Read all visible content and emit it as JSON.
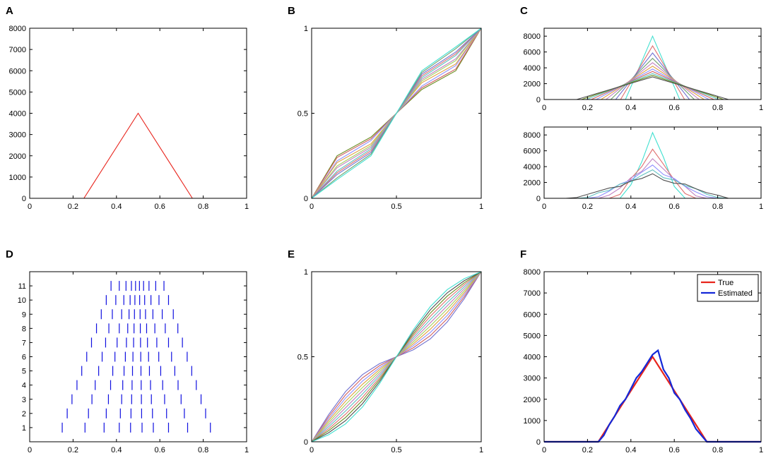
{
  "chart_data": [
    {
      "type": "line",
      "label": "A",
      "xlim": [
        0,
        1
      ],
      "xticks": [
        0,
        0.2,
        0.4,
        0.6,
        0.8,
        1
      ],
      "ylim": [
        0,
        8000
      ],
      "yticks": [
        0,
        1000,
        2000,
        3000,
        4000,
        5000,
        6000,
        7000,
        8000
      ],
      "series": [
        {
          "color": "#e8241c",
          "x": [
            0,
            0.25,
            0.5,
            0.75,
            1
          ],
          "values": [
            0,
            0,
            4000,
            0,
            0
          ]
        }
      ]
    },
    {
      "type": "line",
      "label": "B",
      "xlim": [
        0,
        1
      ],
      "xticks": [
        0,
        0.5,
        1
      ],
      "ylim": [
        0,
        1
      ],
      "yticks": [
        0,
        0.5,
        1
      ],
      "x": [
        0,
        0.15,
        0.35,
        0.5,
        0.65,
        0.85,
        1
      ],
      "series": [
        {
          "color": "#6b8e23",
          "values": [
            0,
            0.25,
            0.36,
            0.5,
            0.64,
            0.75,
            1
          ]
        },
        {
          "color": "#d06060",
          "values": [
            0,
            0.24,
            0.35,
            0.5,
            0.65,
            0.76,
            1
          ]
        },
        {
          "color": "#9090ff",
          "values": [
            0,
            0.22,
            0.34,
            0.5,
            0.66,
            0.78,
            1
          ]
        },
        {
          "color": "#e0a040",
          "values": [
            0,
            0.21,
            0.32,
            0.5,
            0.68,
            0.79,
            1
          ]
        },
        {
          "color": "#a0d060",
          "values": [
            0,
            0.19,
            0.31,
            0.5,
            0.69,
            0.81,
            1
          ]
        },
        {
          "color": "#c080c0",
          "values": [
            0,
            0.18,
            0.3,
            0.5,
            0.7,
            0.82,
            1
          ]
        },
        {
          "color": "#60c0c0",
          "values": [
            0,
            0.16,
            0.29,
            0.5,
            0.71,
            0.84,
            1
          ]
        },
        {
          "color": "#e07070",
          "values": [
            0,
            0.15,
            0.28,
            0.5,
            0.72,
            0.85,
            1
          ]
        },
        {
          "color": "#7070d0",
          "values": [
            0,
            0.14,
            0.27,
            0.5,
            0.73,
            0.86,
            1
          ]
        },
        {
          "color": "#70a070",
          "values": [
            0,
            0.12,
            0.26,
            0.5,
            0.74,
            0.88,
            1
          ]
        },
        {
          "color": "#40e0d0",
          "values": [
            0,
            0.11,
            0.25,
            0.5,
            0.75,
            0.89,
            1
          ]
        }
      ]
    },
    {
      "type": "line",
      "label": "C",
      "xlim": [
        0,
        1
      ],
      "xticks": [
        0,
        0.2,
        0.4,
        0.6,
        0.8,
        1
      ],
      "ylim": [
        0,
        9000
      ],
      "yticks": [
        0,
        2000,
        4000,
        6000,
        8000
      ],
      "series": [
        {
          "color": "#40e0d0",
          "x": [
            0,
            0.375,
            0.5,
            0.625,
            1
          ],
          "values": [
            0,
            0,
            8000,
            0,
            0
          ]
        },
        {
          "color": "#e07070",
          "x": [
            0,
            0.3525,
            0.5,
            0.6475,
            1
          ],
          "values": [
            0,
            0,
            6780,
            0,
            0
          ]
        },
        {
          "color": "#7070d0",
          "x": [
            0,
            0.33,
            0.5,
            0.67,
            1
          ],
          "values": [
            0,
            0,
            5882,
            0,
            0
          ]
        },
        {
          "color": "#70a070",
          "x": [
            0,
            0.3075,
            0.5,
            0.6925,
            1
          ],
          "values": [
            0,
            0,
            5195,
            0,
            0
          ]
        },
        {
          "color": "#c080c0",
          "x": [
            0,
            0.285,
            0.5,
            0.715,
            1
          ],
          "values": [
            0,
            0,
            4651,
            0,
            0
          ]
        },
        {
          "color": "#e0a040",
          "x": [
            0,
            0.2625,
            0.5,
            0.7375,
            1
          ],
          "values": [
            0,
            0,
            4211,
            0,
            0
          ]
        },
        {
          "color": "#9090ff",
          "x": [
            0,
            0.24,
            0.5,
            0.76,
            1
          ],
          "values": [
            0,
            0,
            3846,
            0,
            0
          ]
        },
        {
          "color": "#d06060",
          "x": [
            0,
            0.2175,
            0.5,
            0.7825,
            1
          ],
          "values": [
            0,
            0,
            3540,
            0,
            0
          ]
        },
        {
          "color": "#60c0c0",
          "x": [
            0,
            0.195,
            0.5,
            0.805,
            1
          ],
          "values": [
            0,
            0,
            3279,
            0,
            0
          ]
        },
        {
          "color": "#6b8e23",
          "x": [
            0,
            0.1725,
            0.5,
            0.8275,
            1
          ],
          "values": [
            0,
            0,
            3053,
            0,
            0
          ]
        },
        {
          "color": "#505050",
          "x": [
            0,
            0.15,
            0.5,
            0.85,
            1
          ],
          "values": [
            0,
            0,
            2857,
            0,
            0
          ]
        }
      ]
    },
    {
      "type": "line",
      "xlim": [
        0,
        1
      ],
      "xticks": [
        0,
        0.2,
        0.4,
        0.6,
        0.8,
        1
      ],
      "ylim": [
        0,
        9000
      ],
      "yticks": [
        0,
        2000,
        4000,
        6000,
        8000
      ],
      "x": [
        0.1,
        0.15,
        0.2,
        0.25,
        0.3,
        0.35,
        0.4,
        0.45,
        0.5,
        0.55,
        0.6,
        0.65,
        0.7,
        0.75,
        0.8,
        0.85,
        0.9
      ],
      "series": [
        {
          "color": "#40e0d0",
          "values": [
            0,
            0,
            0,
            0,
            0,
            0,
            1700,
            4600,
            8300,
            5200,
            1500,
            0,
            0,
            0,
            0,
            0,
            0
          ]
        },
        {
          "color": "#e07070",
          "values": [
            0,
            0,
            0,
            0,
            0,
            500,
            2500,
            4000,
            6200,
            4300,
            2300,
            600,
            0,
            0,
            0,
            0,
            0
          ]
        },
        {
          "color": "#c080c0",
          "values": [
            0,
            0,
            0,
            0,
            400,
            1300,
            2600,
            3400,
            5000,
            3700,
            2400,
            1500,
            300,
            0,
            0,
            0,
            0
          ]
        },
        {
          "color": "#9090ff",
          "values": [
            0,
            0,
            0,
            200,
            900,
            1800,
            2300,
            3300,
            4200,
            3000,
            2500,
            1500,
            800,
            200,
            0,
            0,
            0
          ]
        },
        {
          "color": "#60c0c0",
          "values": [
            0,
            0,
            100,
            700,
            1000,
            1800,
            2100,
            2900,
            3600,
            2600,
            2300,
            1600,
            1200,
            500,
            100,
            0,
            0
          ]
        },
        {
          "color": "#505050",
          "values": [
            0,
            100,
            500,
            900,
            1300,
            1500,
            2200,
            2500,
            3100,
            2300,
            1900,
            1800,
            1200,
            700,
            400,
            0,
            0
          ]
        }
      ]
    },
    {
      "type": "raster",
      "label": "D",
      "color": "#1010e0",
      "xlim": [
        0,
        1
      ],
      "xticks": [
        0,
        0.2,
        0.4,
        0.6,
        0.8,
        1
      ],
      "ylim": [
        0,
        12
      ],
      "yticks": [
        1,
        2,
        3,
        4,
        5,
        6,
        7,
        8,
        9,
        10,
        11
      ],
      "rows": [
        [
          0.15,
          0.255,
          0.343,
          0.413,
          0.465,
          0.518,
          0.57,
          0.64,
          0.728,
          0.833
        ],
        [
          0.173,
          0.271,
          0.353,
          0.418,
          0.467,
          0.516,
          0.566,
          0.631,
          0.713,
          0.811
        ],
        [
          0.195,
          0.287,
          0.363,
          0.424,
          0.47,
          0.515,
          0.561,
          0.622,
          0.698,
          0.79
        ],
        [
          0.218,
          0.302,
          0.373,
          0.429,
          0.472,
          0.514,
          0.557,
          0.613,
          0.684,
          0.768
        ],
        [
          0.24,
          0.318,
          0.383,
          0.435,
          0.474,
          0.513,
          0.552,
          0.604,
          0.669,
          0.747
        ],
        [
          0.263,
          0.334,
          0.393,
          0.441,
          0.476,
          0.512,
          0.548,
          0.595,
          0.654,
          0.726
        ],
        [
          0.285,
          0.35,
          0.403,
          0.446,
          0.479,
          0.511,
          0.543,
          0.586,
          0.64,
          0.704
        ],
        [
          0.308,
          0.365,
          0.413,
          0.452,
          0.481,
          0.51,
          0.539,
          0.577,
          0.625,
          0.683
        ],
        [
          0.33,
          0.381,
          0.424,
          0.458,
          0.483,
          0.509,
          0.534,
          0.568,
          0.611,
          0.662
        ],
        [
          0.353,
          0.397,
          0.434,
          0.463,
          0.485,
          0.507,
          0.53,
          0.559,
          0.596,
          0.64
        ],
        [
          0.375,
          0.413,
          0.444,
          0.469,
          0.488,
          0.506,
          0.525,
          0.55,
          0.581,
          0.619
        ]
      ]
    },
    {
      "type": "line",
      "label": "E",
      "xlim": [
        0,
        1
      ],
      "xticks": [
        0,
        0.5,
        1
      ],
      "ylim": [
        0,
        1
      ],
      "yticks": [
        0,
        0.5,
        1
      ],
      "x": [
        0,
        0.1,
        0.2,
        0.3,
        0.4,
        0.5,
        0.6,
        0.7,
        0.8,
        0.9,
        1
      ],
      "series": [
        {
          "color": "#7070d0",
          "values": [
            0,
            0.159,
            0.295,
            0.395,
            0.459,
            0.5,
            0.541,
            0.605,
            0.705,
            0.841,
            1
          ]
        },
        {
          "color": "#d06060",
          "values": [
            0,
            0.147,
            0.276,
            0.376,
            0.447,
            0.5,
            0.553,
            0.624,
            0.724,
            0.853,
            1
          ]
        },
        {
          "color": "#9090ff",
          "values": [
            0,
            0.135,
            0.257,
            0.357,
            0.435,
            0.5,
            0.565,
            0.643,
            0.743,
            0.865,
            1
          ]
        },
        {
          "color": "#e0a040",
          "values": [
            0,
            0.124,
            0.238,
            0.338,
            0.424,
            0.5,
            0.576,
            0.662,
            0.762,
            0.876,
            1
          ]
        },
        {
          "color": "#a0d060",
          "values": [
            0,
            0.112,
            0.219,
            0.319,
            0.412,
            0.5,
            0.588,
            0.681,
            0.781,
            0.888,
            1
          ]
        },
        {
          "color": "#c080c0",
          "values": [
            0,
            0.1,
            0.2,
            0.3,
            0.4,
            0.5,
            0.6,
            0.7,
            0.8,
            0.9,
            1
          ]
        },
        {
          "color": "#60c0c0",
          "values": [
            0,
            0.088,
            0.181,
            0.281,
            0.388,
            0.5,
            0.612,
            0.719,
            0.819,
            0.912,
            1
          ]
        },
        {
          "color": "#e07070",
          "values": [
            0,
            0.076,
            0.162,
            0.262,
            0.376,
            0.5,
            0.624,
            0.738,
            0.838,
            0.924,
            1
          ]
        },
        {
          "color": "#6b8e23",
          "values": [
            0,
            0.065,
            0.143,
            0.243,
            0.365,
            0.5,
            0.635,
            0.757,
            0.857,
            0.935,
            1
          ]
        },
        {
          "color": "#505050",
          "values": [
            0,
            0.053,
            0.124,
            0.224,
            0.353,
            0.5,
            0.647,
            0.776,
            0.876,
            0.947,
            1
          ]
        },
        {
          "color": "#40e0d0",
          "values": [
            0,
            0.041,
            0.105,
            0.205,
            0.341,
            0.5,
            0.659,
            0.795,
            0.895,
            0.959,
            1
          ]
        }
      ]
    },
    {
      "type": "line",
      "label": "F",
      "xlim": [
        0,
        1
      ],
      "xticks": [
        0,
        0.2,
        0.4,
        0.6,
        0.8,
        1
      ],
      "ylim": [
        0,
        8000
      ],
      "yticks": [
        0,
        1000,
        2000,
        3000,
        4000,
        5000,
        6000,
        7000,
        8000
      ],
      "legend": "upper right",
      "series": [
        {
          "name": "True",
          "color": "#e8241c",
          "x": [
            0,
            0.25,
            0.5,
            0.75,
            1
          ],
          "values": [
            0,
            0,
            4000,
            0,
            0
          ]
        },
        {
          "name": "Estimated",
          "color": "#1428d8",
          "x": [
            0,
            0.25,
            0.275,
            0.3,
            0.325,
            0.35,
            0.375,
            0.4,
            0.425,
            0.45,
            0.475,
            0.5,
            0.525,
            0.55,
            0.575,
            0.6,
            0.625,
            0.65,
            0.675,
            0.7,
            0.725,
            0.75,
            1
          ],
          "values": [
            0,
            0,
            300,
            800,
            1200,
            1700,
            2000,
            2500,
            3000,
            3300,
            3700,
            4100,
            4300,
            3400,
            3000,
            2300,
            2000,
            1500,
            1100,
            600,
            300,
            0,
            0
          ]
        }
      ]
    }
  ]
}
